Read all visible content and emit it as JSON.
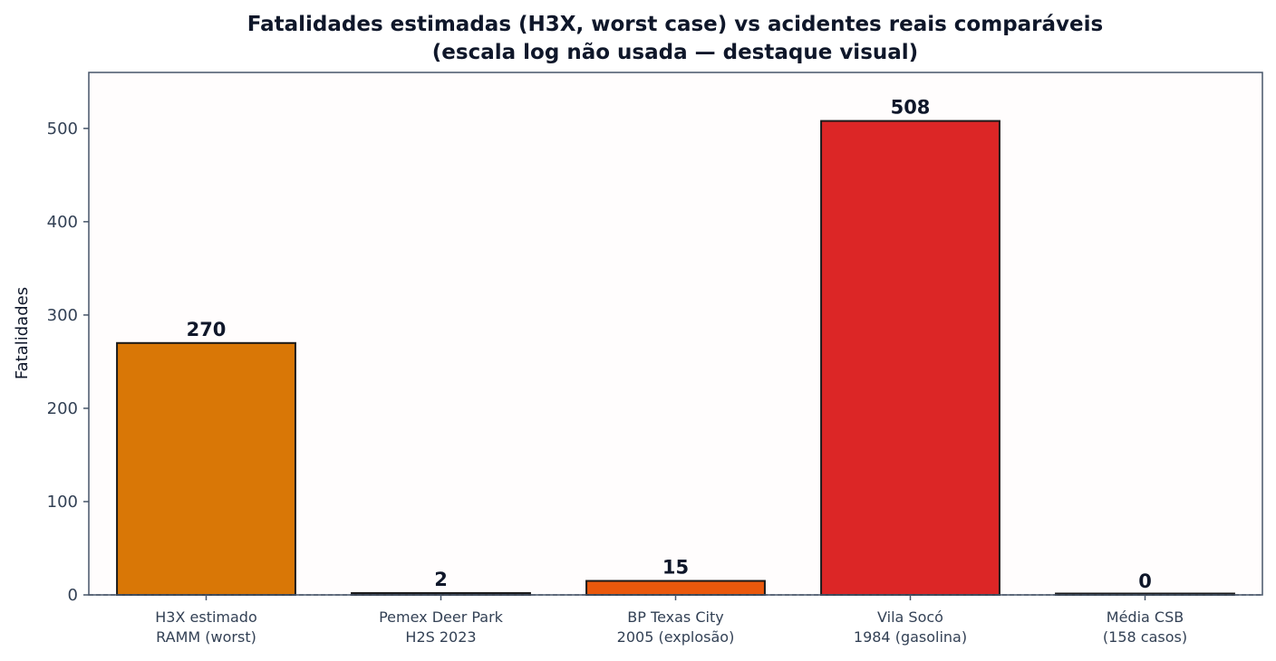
{
  "chart_data": {
    "type": "bar",
    "title_lines": [
      "Fatalidades estimadas (H3X, worst case) vs acidentes reais comparáveis",
      "(escala log não usada — destaque visual)"
    ],
    "ylabel": "Fatalidades",
    "xlabel": "",
    "ylim": [
      0,
      560
    ],
    "yticks": [
      0,
      100,
      200,
      300,
      400,
      500
    ],
    "categories": [
      [
        "H3X estimado",
        "RAMM (worst)"
      ],
      [
        "Pemex Deer Park",
        "H2S 2023"
      ],
      [
        "BP Texas City",
        "2005 (explosão)"
      ],
      [
        "Vila Socó",
        "1984 (gasolina)"
      ],
      [
        "Média CSB",
        "(158 casos)"
      ]
    ],
    "values": [
      270,
      2,
      15,
      508,
      0
    ],
    "value_labels": [
      "270",
      "2",
      "15",
      "508",
      "0"
    ],
    "colors": [
      "#d97706",
      "#334155",
      "#ea580c",
      "#dc2626",
      "#334155"
    ],
    "reference_line": {
      "y": 0,
      "style": "dashed"
    },
    "grid": false,
    "legend": "none"
  }
}
